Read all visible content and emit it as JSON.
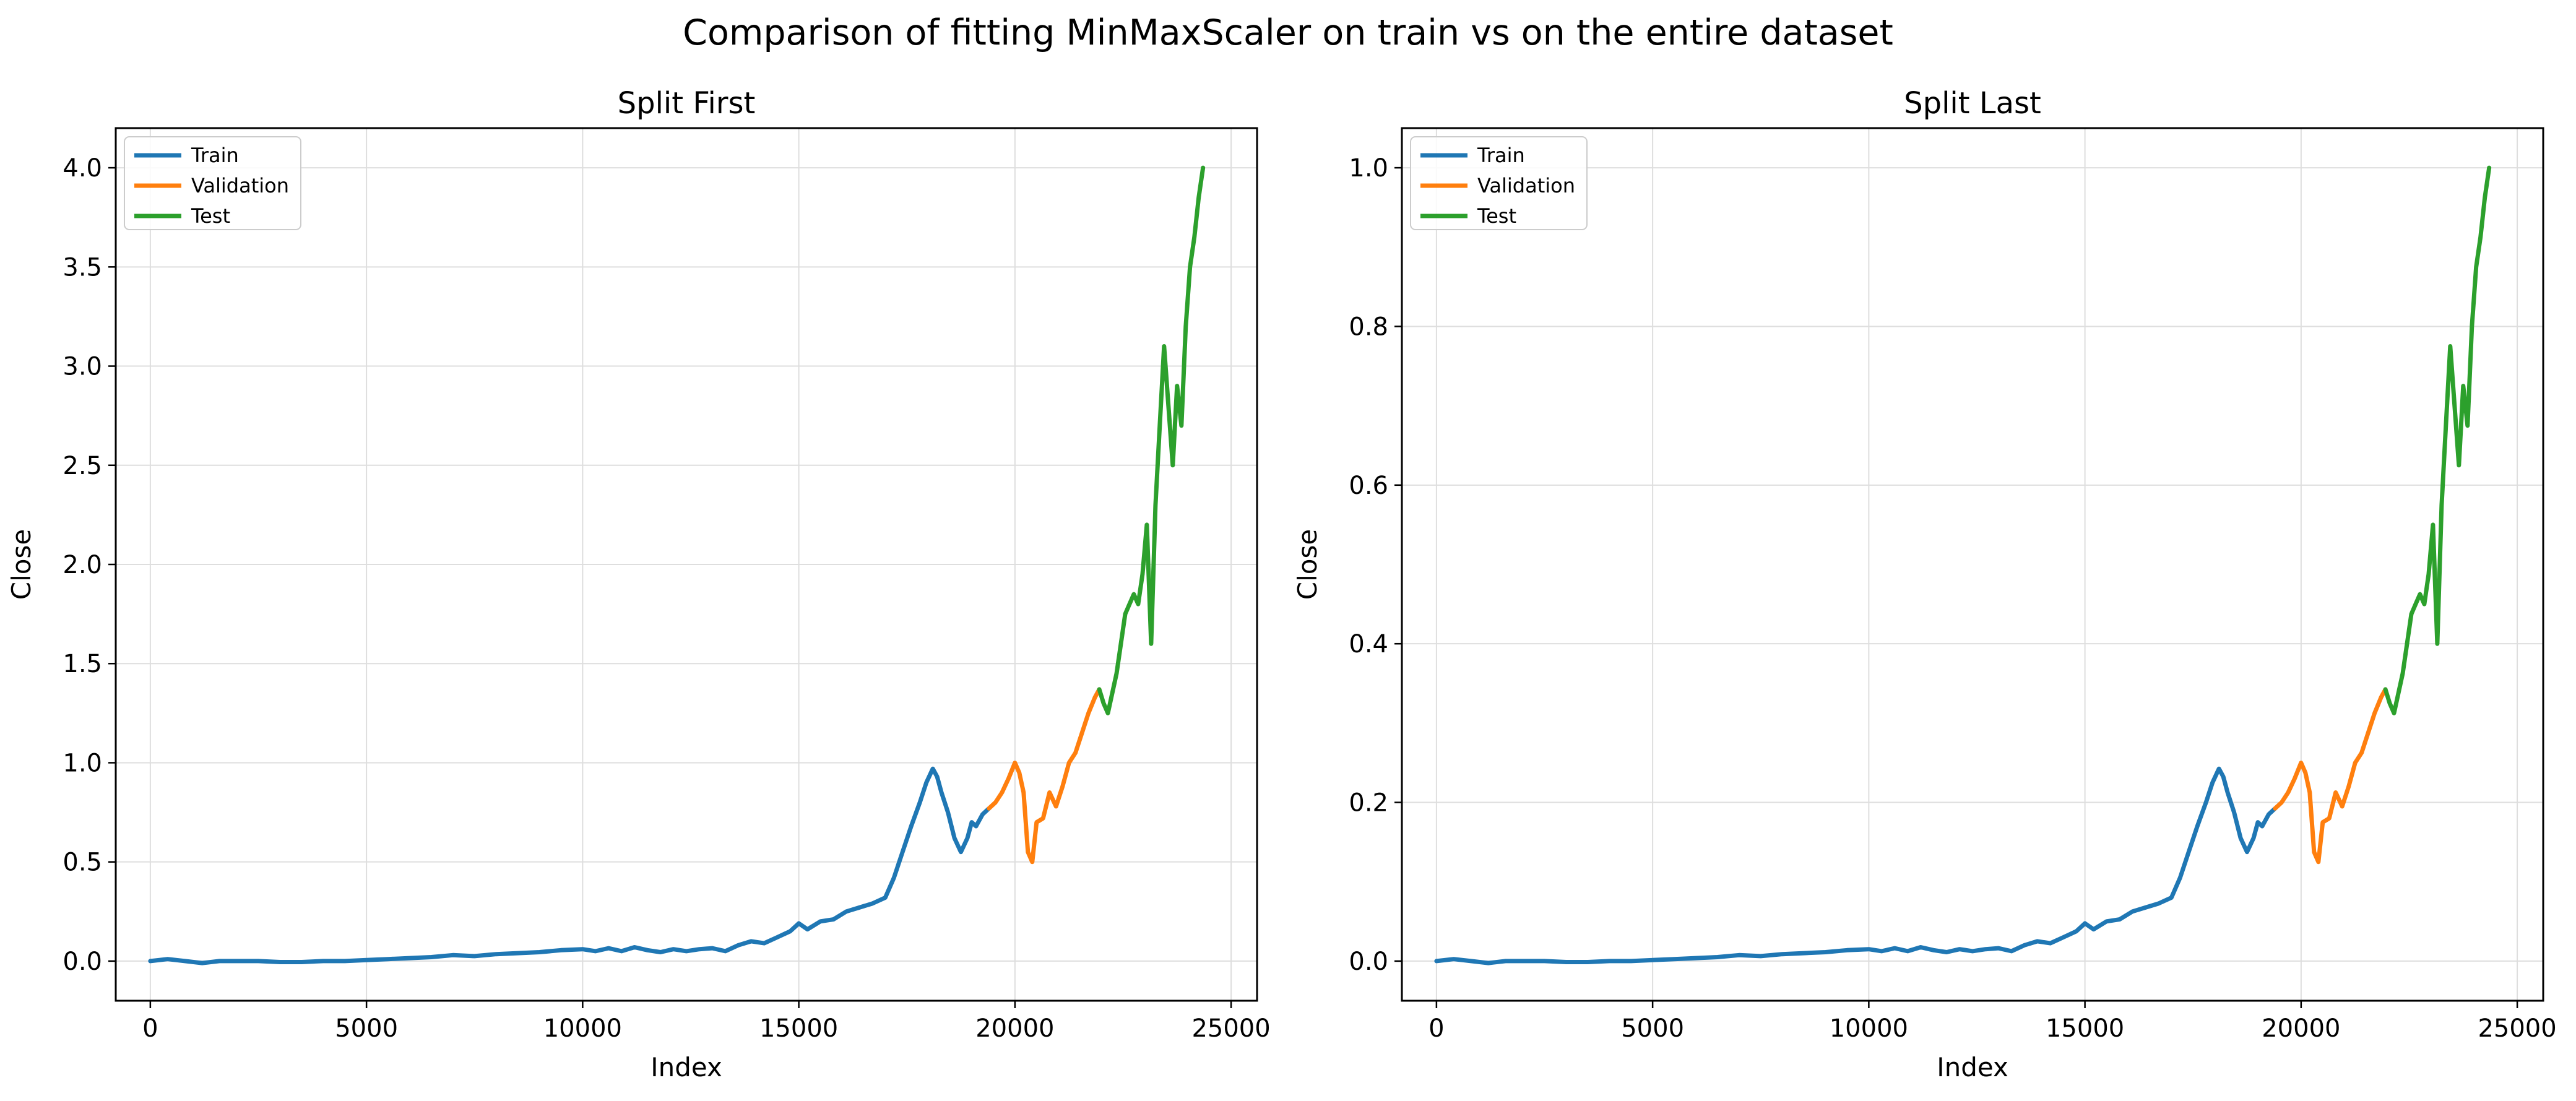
{
  "figure": {
    "suptitle": "Comparison of fitting MinMaxScaler on train vs on the entire dataset"
  },
  "chart_data": [
    {
      "type": "line",
      "title": "Split First",
      "xlabel": "Index",
      "ylabel": "Close",
      "xlim": [
        -800,
        25600
      ],
      "ylim": [
        -0.2,
        4.2
      ],
      "xticks": [
        0,
        5000,
        10000,
        15000,
        20000,
        25000
      ],
      "xtick_labels": [
        "0",
        "5000",
        "10000",
        "15000",
        "20000",
        "25000"
      ],
      "yticks": [
        0.0,
        0.5,
        1.0,
        1.5,
        2.0,
        2.5,
        3.0,
        3.5,
        4.0
      ],
      "ytick_labels": [
        "0.0",
        "0.5",
        "1.0",
        "1.5",
        "2.0",
        "2.5",
        "3.0",
        "3.5",
        "4.0"
      ],
      "grid": true,
      "legend": "upper-left",
      "series": [
        {
          "name": "Train",
          "color": "#1f77b4",
          "x": [
            0,
            400,
            800,
            1200,
            1600,
            2000,
            2500,
            3000,
            3500,
            4000,
            4500,
            5000,
            5500,
            6000,
            6500,
            7000,
            7500,
            8000,
            8500,
            9000,
            9500,
            10000,
            10300,
            10600,
            10900,
            11200,
            11500,
            11800,
            12100,
            12400,
            12700,
            13000,
            13300,
            13600,
            13900,
            14200,
            14500,
            14800,
            15000,
            15200,
            15500,
            15800,
            16100,
            16400,
            16700,
            17000,
            17200,
            17400,
            17600,
            17800,
            17950,
            18100,
            18200,
            18300,
            18450,
            18600,
            18750,
            18900,
            19000,
            19100,
            19250,
            19400
          ],
          "y": [
            0.0,
            0.01,
            0.0,
            -0.01,
            0.0,
            0.0,
            0.0,
            -0.005,
            -0.005,
            0.0,
            0.0,
            0.005,
            0.01,
            0.015,
            0.02,
            0.03,
            0.025,
            0.035,
            0.04,
            0.045,
            0.055,
            0.06,
            0.05,
            0.065,
            0.05,
            0.07,
            0.055,
            0.045,
            0.06,
            0.05,
            0.06,
            0.065,
            0.05,
            0.08,
            0.1,
            0.09,
            0.12,
            0.15,
            0.19,
            0.16,
            0.2,
            0.21,
            0.25,
            0.27,
            0.29,
            0.32,
            0.42,
            0.55,
            0.68,
            0.8,
            0.9,
            0.97,
            0.93,
            0.85,
            0.75,
            0.62,
            0.55,
            0.62,
            0.7,
            0.68,
            0.74,
            0.77
          ]
        },
        {
          "name": "Validation",
          "color": "#ff7f0e",
          "x": [
            19400,
            19550,
            19700,
            19850,
            20000,
            20100,
            20200,
            20300,
            20400,
            20500,
            20650,
            20800,
            20950,
            21100,
            21250,
            21400,
            21550,
            21700,
            21850,
            21950
          ],
          "y": [
            0.77,
            0.8,
            0.85,
            0.92,
            1.0,
            0.95,
            0.85,
            0.55,
            0.5,
            0.7,
            0.72,
            0.85,
            0.78,
            0.88,
            1.0,
            1.05,
            1.15,
            1.25,
            1.33,
            1.37
          ]
        },
        {
          "name": "Test",
          "color": "#2ca02c",
          "x": [
            21950,
            22050,
            22150,
            22250,
            22350,
            22450,
            22550,
            22650,
            22750,
            22850,
            22950,
            23050,
            23150,
            23250,
            23350,
            23450,
            23550,
            23650,
            23750,
            23850,
            23950,
            24050,
            24150,
            24250,
            24350
          ],
          "y": [
            1.37,
            1.3,
            1.25,
            1.35,
            1.45,
            1.6,
            1.75,
            1.8,
            1.85,
            1.8,
            1.95,
            2.2,
            1.6,
            2.3,
            2.7,
            3.1,
            2.8,
            2.5,
            2.9,
            2.7,
            3.2,
            3.5,
            3.65,
            3.85,
            4.0
          ]
        }
      ]
    },
    {
      "type": "line",
      "title": "Split Last",
      "xlabel": "Index",
      "ylabel": "Close",
      "xlim": [
        -800,
        25600
      ],
      "ylim": [
        -0.05,
        1.05
      ],
      "xticks": [
        0,
        5000,
        10000,
        15000,
        20000,
        25000
      ],
      "xtick_labels": [
        "0",
        "5000",
        "10000",
        "15000",
        "20000",
        "25000"
      ],
      "yticks": [
        0.0,
        0.2,
        0.4,
        0.6,
        0.8,
        1.0
      ],
      "ytick_labels": [
        "0.0",
        "0.2",
        "0.4",
        "0.6",
        "0.8",
        "1.0"
      ],
      "grid": true,
      "legend": "upper-left",
      "series": [
        {
          "name": "Train",
          "color": "#1f77b4",
          "x": [
            0,
            400,
            800,
            1200,
            1600,
            2000,
            2500,
            3000,
            3500,
            4000,
            4500,
            5000,
            5500,
            6000,
            6500,
            7000,
            7500,
            8000,
            8500,
            9000,
            9500,
            10000,
            10300,
            10600,
            10900,
            11200,
            11500,
            11800,
            12100,
            12400,
            12700,
            13000,
            13300,
            13600,
            13900,
            14200,
            14500,
            14800,
            15000,
            15200,
            15500,
            15800,
            16100,
            16400,
            16700,
            17000,
            17200,
            17400,
            17600,
            17800,
            17950,
            18100,
            18200,
            18300,
            18450,
            18600,
            18750,
            18900,
            19000,
            19100,
            19250,
            19400
          ],
          "y": [
            0.0,
            0.0025,
            0.0,
            -0.0025,
            0.0,
            0.0,
            0.0,
            -0.00125,
            -0.00125,
            0.0,
            0.0,
            0.00125,
            0.0025,
            0.00375,
            0.005,
            0.0075,
            0.00625,
            0.00875,
            0.01,
            0.01125,
            0.01375,
            0.015,
            0.0125,
            0.01625,
            0.0125,
            0.0175,
            0.01375,
            0.01125,
            0.015,
            0.0125,
            0.015,
            0.01625,
            0.0125,
            0.02,
            0.025,
            0.0225,
            0.03,
            0.0375,
            0.0475,
            0.04,
            0.05,
            0.0525,
            0.0625,
            0.0675,
            0.0725,
            0.08,
            0.105,
            0.1375,
            0.17,
            0.2,
            0.225,
            0.2425,
            0.2325,
            0.2125,
            0.1875,
            0.155,
            0.1375,
            0.155,
            0.175,
            0.17,
            0.185,
            0.1925
          ]
        },
        {
          "name": "Validation",
          "color": "#ff7f0e",
          "x": [
            19400,
            19550,
            19700,
            19850,
            20000,
            20100,
            20200,
            20300,
            20400,
            20500,
            20650,
            20800,
            20950,
            21100,
            21250,
            21400,
            21550,
            21700,
            21850,
            21950
          ],
          "y": [
            0.1925,
            0.2,
            0.2125,
            0.23,
            0.25,
            0.2375,
            0.2125,
            0.1375,
            0.125,
            0.175,
            0.18,
            0.2125,
            0.195,
            0.22,
            0.25,
            0.2625,
            0.2875,
            0.3125,
            0.3325,
            0.3425
          ]
        },
        {
          "name": "Test",
          "color": "#2ca02c",
          "x": [
            21950,
            22050,
            22150,
            22250,
            22350,
            22450,
            22550,
            22650,
            22750,
            22850,
            22950,
            23050,
            23150,
            23250,
            23350,
            23450,
            23550,
            23650,
            23750,
            23850,
            23950,
            24050,
            24150,
            24250,
            24350
          ],
          "y": [
            0.3425,
            0.325,
            0.3125,
            0.3375,
            0.3625,
            0.4,
            0.4375,
            0.45,
            0.4625,
            0.45,
            0.4875,
            0.55,
            0.4,
            0.575,
            0.675,
            0.775,
            0.7,
            0.625,
            0.725,
            0.675,
            0.8,
            0.875,
            0.9125,
            0.9625,
            1.0
          ]
        }
      ]
    }
  ]
}
